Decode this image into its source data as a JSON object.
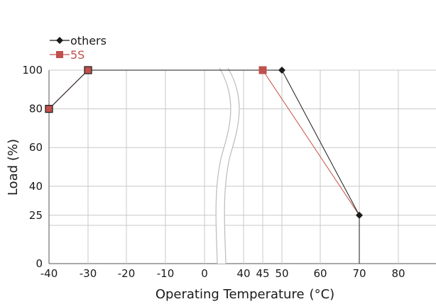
{
  "chart_data": {
    "type": "line",
    "title": "",
    "xlabel": "Operating Temperature",
    "xlabel_unit": "(°C)",
    "ylabel": "Load (%)",
    "x_ticks": [
      "-40",
      "-30",
      "-20",
      "-10",
      "0",
      "40",
      "45",
      "50",
      "60",
      "70",
      "80"
    ],
    "y_ticks": [
      "0",
      "25",
      "40",
      "60",
      "80",
      "100"
    ],
    "x_axis_break": [
      0,
      40
    ],
    "ylim": [
      0,
      100
    ],
    "grid": true,
    "legend": "top-left",
    "series": [
      {
        "name": "others",
        "color": "#1a1a1a",
        "marker": "diamond",
        "x": [
          -40,
          -30,
          50,
          70,
          70
        ],
        "y": [
          80,
          100,
          100,
          25,
          0
        ]
      },
      {
        "name": "5S",
        "color": "#c0504d",
        "marker": "square",
        "x": [
          -40,
          -30,
          45,
          70,
          70
        ],
        "y": [
          80,
          100,
          100,
          25,
          0
        ]
      }
    ]
  }
}
